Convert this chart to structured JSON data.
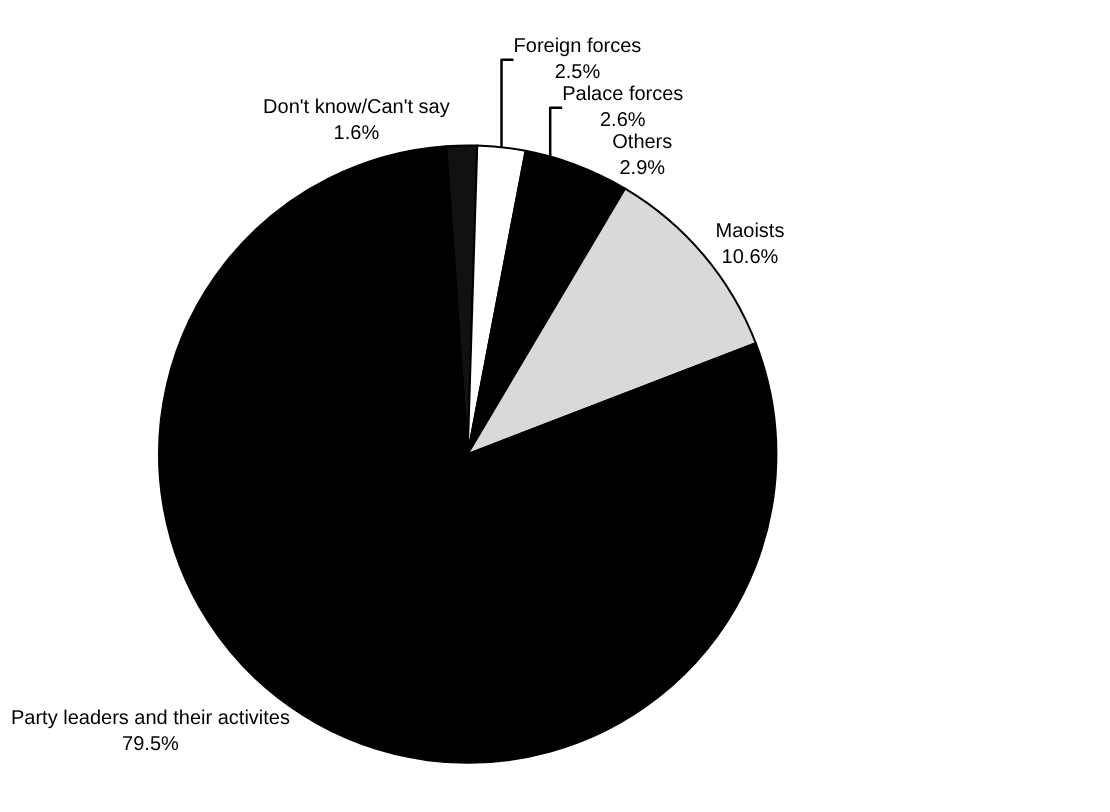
{
  "chart_data": {
    "type": "pie",
    "categories": [
      "Don't know/Can't say",
      "Foreign forces",
      "Palace forces",
      "Others",
      "Maoists",
      "Party leaders and their activites"
    ],
    "values": [
      1.6,
      2.5,
      2.6,
      2.9,
      10.6,
      79.5
    ],
    "value_labels": [
      "1.6%",
      "2.5%",
      "2.6%",
      "2.9%",
      "10.6%",
      "79.5%"
    ],
    "colors": [
      "#111111",
      "#ffffff",
      "#000000",
      "#000000",
      "#d9d9d9",
      "#000000"
    ],
    "data_labels": true,
    "legend": false
  }
}
